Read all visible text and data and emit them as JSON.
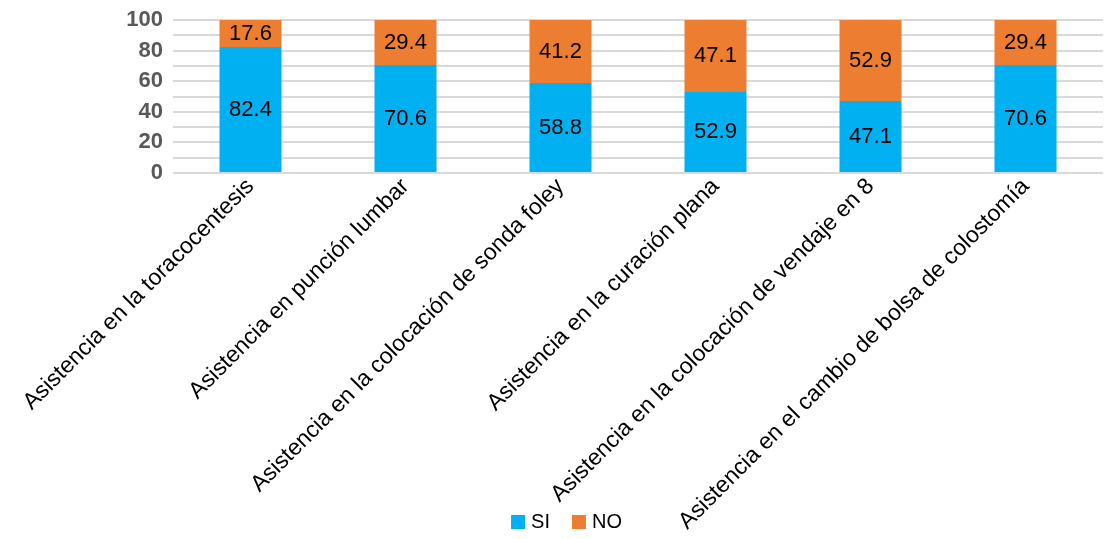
{
  "chart_data": {
    "type": "bar",
    "stacked": true,
    "categories": [
      "Asistencia en la toracocentesis",
      "Asistencia en punción lumbar",
      "Asistencia en la colocación de sonda foley",
      "Asistencia en la curación plana",
      "Asistencia en la colocación de vendaje en 8",
      "Asistencia en el cambio de bolsa de colostomía"
    ],
    "series": [
      {
        "name": "SI",
        "color": "#00b0f0",
        "values": [
          82.4,
          70.6,
          58.8,
          52.9,
          47.1,
          70.6
        ]
      },
      {
        "name": "NO",
        "color": "#ed7d31",
        "values": [
          17.6,
          29.4,
          41.2,
          47.1,
          52.9,
          29.4
        ]
      }
    ],
    "ylim": [
      0,
      100
    ],
    "yticks": [
      0,
      {
        "value": 10,
        "label": null
      },
      20,
      {
        "value": 30,
        "label": null
      },
      40,
      {
        "value": 50,
        "label": null
      },
      60,
      {
        "value": 70,
        "label": null
      },
      80,
      {
        "value": 90,
        "label": null
      },
      100
    ],
    "grid": "y",
    "legend": "bottom",
    "data_labels": true
  }
}
